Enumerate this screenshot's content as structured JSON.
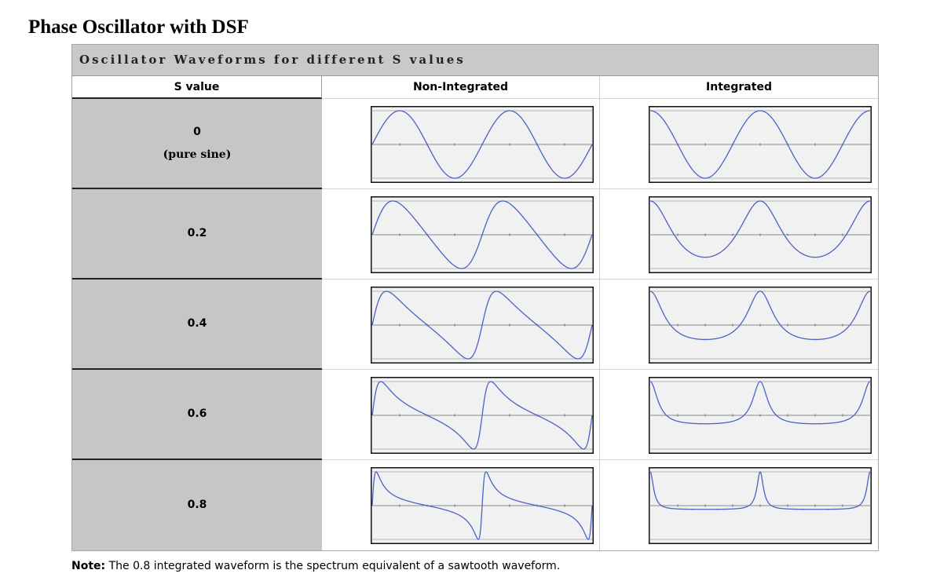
{
  "page": {
    "title": "Phase Oscillator with DSF"
  },
  "table": {
    "caption": "Oscillator Waveforms for different S values",
    "headers": {
      "s_value": "S value",
      "non_integrated": "Non-Integrated",
      "integrated": "Integrated"
    },
    "rows": [
      {
        "s": "0",
        "sub": "(pure sine)",
        "s_num": 0
      },
      {
        "s": "0.2",
        "sub": "",
        "s_num": 0.2
      },
      {
        "s": "0.4",
        "sub": "",
        "s_num": 0.4
      },
      {
        "s": "0.6",
        "sub": "",
        "s_num": 0.6
      },
      {
        "s": "0.8",
        "sub": "",
        "s_num": 0.8
      }
    ],
    "plot_style": {
      "wave_color": "#4a63c4",
      "plot_background": "#f1f1f1",
      "frame_color": "#111111",
      "guide_color": "#b5b5b5",
      "cycles_shown": 2
    }
  },
  "note": {
    "label": "Note:",
    "text": " The 0.8 integrated waveform is the spectrum equivalent of a sawtooth waveform."
  }
}
